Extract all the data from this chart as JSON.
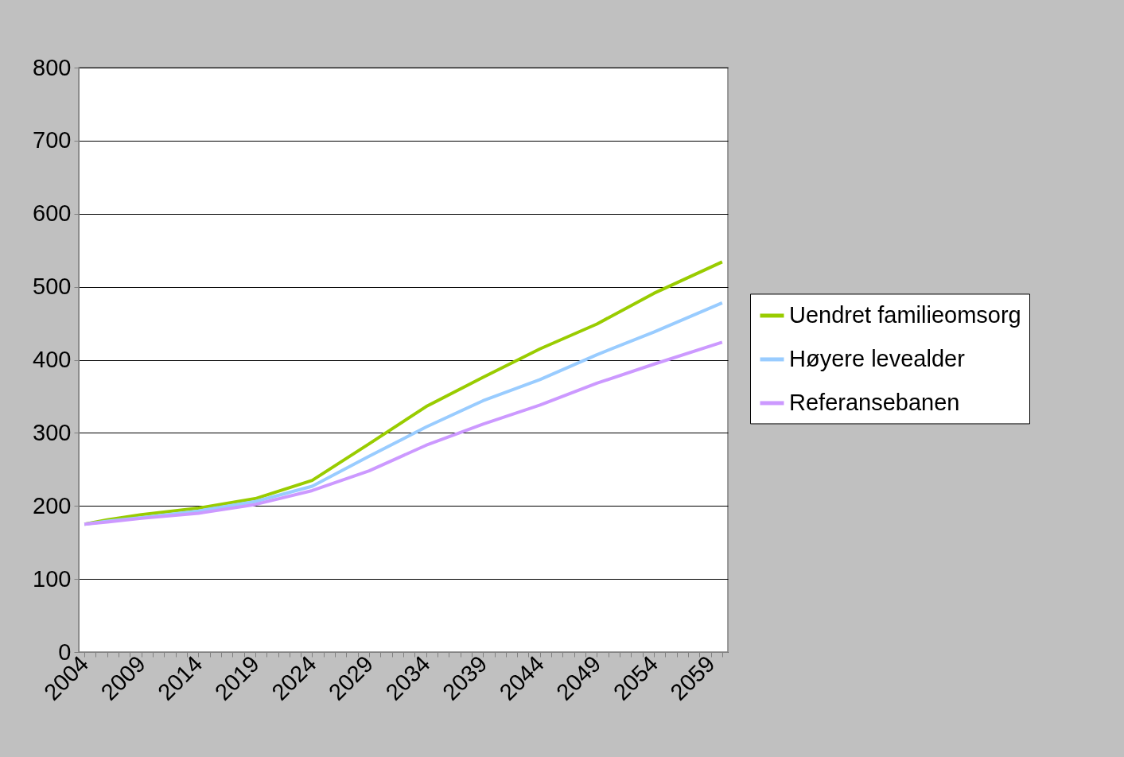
{
  "chart_data": {
    "type": "line",
    "x": [
      2004,
      2006,
      2009,
      2014,
      2019,
      2024,
      2029,
      2034,
      2039,
      2044,
      2049,
      2054,
      2060
    ],
    "series": [
      {
        "name": "Uendret familieomsorg",
        "color": "#99cc00",
        "values": [
          175,
          181,
          188,
          197,
          210,
          235,
          285,
          336,
          376,
          415,
          449,
          491,
          534
        ]
      },
      {
        "name": "Høyere levealder",
        "color": "#99ccff",
        "values": [
          175,
          179,
          184,
          193,
          206,
          227,
          268,
          308,
          344,
          373,
          407,
          438,
          478
        ]
      },
      {
        "name": "Referansebanen",
        "color": "#cc99ff",
        "values": [
          175,
          178,
          183,
          190,
          202,
          221,
          248,
          283,
          312,
          338,
          368,
          394,
          424
        ]
      }
    ],
    "xlim": [
      2003.5,
      2060.5
    ],
    "xticks": [
      2004,
      {
        "value": 2005,
        "label": null
      },
      {
        "value": 2006,
        "label": null
      },
      {
        "value": 2007,
        "label": null
      },
      {
        "value": 2008,
        "label": null
      },
      2009,
      {
        "value": 2010,
        "label": null
      },
      {
        "value": 2011,
        "label": null
      },
      {
        "value": 2012,
        "label": null
      },
      {
        "value": 2013,
        "label": null
      },
      2014,
      {
        "value": 2015,
        "label": null
      },
      {
        "value": 2016,
        "label": null
      },
      {
        "value": 2017,
        "label": null
      },
      {
        "value": 2018,
        "label": null
      },
      2019,
      {
        "value": 2020,
        "label": null
      },
      {
        "value": 2021,
        "label": null
      },
      {
        "value": 2022,
        "label": null
      },
      {
        "value": 2023,
        "label": null
      },
      2024,
      {
        "value": 2025,
        "label": null
      },
      {
        "value": 2026,
        "label": null
      },
      {
        "value": 2027,
        "label": null
      },
      {
        "value": 2028,
        "label": null
      },
      2029,
      {
        "value": 2030,
        "label": null
      },
      {
        "value": 2031,
        "label": null
      },
      {
        "value": 2032,
        "label": null
      },
      {
        "value": 2033,
        "label": null
      },
      2034,
      {
        "value": 2035,
        "label": null
      },
      {
        "value": 2036,
        "label": null
      },
      {
        "value": 2037,
        "label": null
      },
      {
        "value": 2038,
        "label": null
      },
      2039,
      {
        "value": 2040,
        "label": null
      },
      {
        "value": 2041,
        "label": null
      },
      {
        "value": 2042,
        "label": null
      },
      {
        "value": 2043,
        "label": null
      },
      2044,
      {
        "value": 2045,
        "label": null
      },
      {
        "value": 2046,
        "label": null
      },
      {
        "value": 2047,
        "label": null
      },
      {
        "value": 2048,
        "label": null
      },
      2049,
      {
        "value": 2050,
        "label": null
      },
      {
        "value": 2051,
        "label": null
      },
      {
        "value": 2052,
        "label": null
      },
      {
        "value": 2053,
        "label": null
      },
      2054,
      {
        "value": 2055,
        "label": null
      },
      {
        "value": 2056,
        "label": null
      },
      {
        "value": 2057,
        "label": null
      },
      {
        "value": 2058,
        "label": null
      },
      2059,
      {
        "value": 2060,
        "label": null
      }
    ],
    "ylim": [
      0,
      800
    ],
    "yticks": [
      0,
      100,
      200,
      300,
      400,
      500,
      600,
      700,
      800
    ],
    "grid": "y",
    "legend": "right"
  }
}
